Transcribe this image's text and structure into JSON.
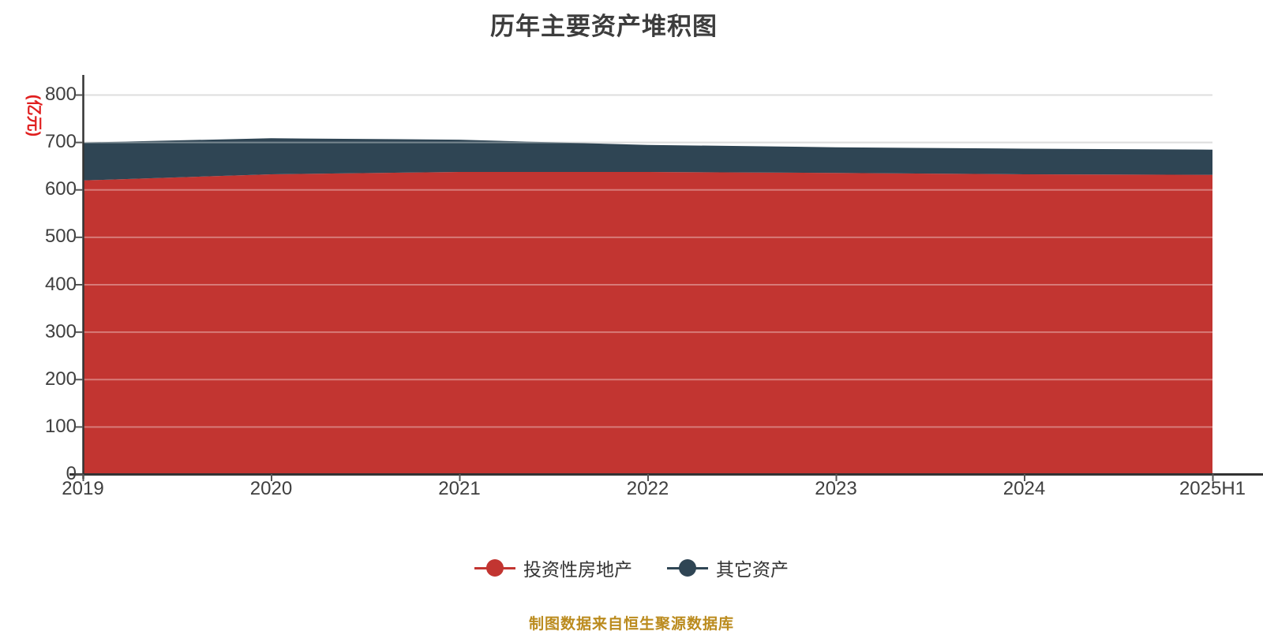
{
  "chart_data": {
    "type": "area",
    "stacked": true,
    "title": "历年主要资产堆积图",
    "y_axis_name": "(亿元)",
    "categories": [
      "2019",
      "2020",
      "2021",
      "2022",
      "2023",
      "2024",
      "2025H1"
    ],
    "series": [
      {
        "name": "投资性房地产",
        "color": "#c23531",
        "values": [
          619,
          632,
          637,
          637,
          635,
          632,
          631
        ]
      },
      {
        "name": "其它资产",
        "color": "#2f4554",
        "values": [
          80,
          76,
          68,
          57,
          54,
          54,
          53
        ]
      }
    ],
    "stacked_totals": [
      699,
      708,
      705,
      694,
      689,
      686,
      684
    ],
    "ylim": [
      0,
      800
    ],
    "y_ticks": [
      0,
      100,
      200,
      300,
      400,
      500,
      600,
      700,
      800
    ],
    "grid": true,
    "legend_position": "bottom",
    "source_note": "制图数据来自恒生聚源数据库"
  },
  "colors": {
    "y_name_text": "#e01f1f",
    "source_text": "#bb8b1e",
    "axis_line": "#333333",
    "tick_label": "#3f3f3f",
    "gridline": "#cccccc",
    "title_text": "#3d3d3d"
  }
}
